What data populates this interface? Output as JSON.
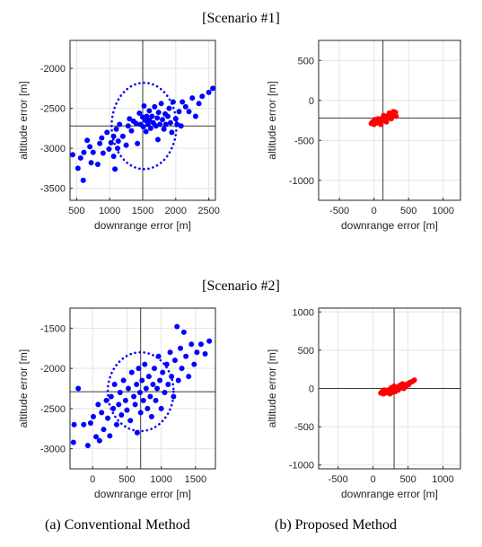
{
  "scenario_titles": [
    "[Scenario  #1]",
    "[Scenario  #2]"
  ],
  "captions": [
    "(a)  Conventional  Method",
    "(b)  Proposed  Method"
  ],
  "chart_data": [
    {
      "type": "scatter",
      "scenario": "[Scenario  #1]",
      "panel": "(a)  Conventional  Method",
      "xlabel": "downrange error [m]",
      "ylabel": "altitude error [m]",
      "xlim": [
        400,
        2600
      ],
      "ylim": [
        -3650,
        -1650
      ],
      "xticks": [
        500,
        1000,
        1500,
        2000,
        2500
      ],
      "yticks": [
        -3500,
        -3000,
        -2500,
        -2000
      ],
      "grid": true,
      "marker_color": "#0000ff",
      "crosshair": {
        "x": 1500,
        "y": -2720
      },
      "circle": {
        "cx": 1520,
        "cy": -2720,
        "rx": 490,
        "ry": 540
      },
      "points": [
        [
          440,
          -3080
        ],
        [
          520,
          -3250
        ],
        [
          560,
          -3120
        ],
        [
          600,
          -3400
        ],
        [
          610,
          -3050
        ],
        [
          660,
          -2900
        ],
        [
          700,
          -2980
        ],
        [
          720,
          -3180
        ],
        [
          750,
          -3050
        ],
        [
          820,
          -3200
        ],
        [
          850,
          -2940
        ],
        [
          880,
          -2870
        ],
        [
          900,
          -3060
        ],
        [
          960,
          -2800
        ],
        [
          990,
          -3010
        ],
        [
          1020,
          -2930
        ],
        [
          1060,
          -3100
        ],
        [
          1060,
          -2850
        ],
        [
          1080,
          -3260
        ],
        [
          1100,
          -2760
        ],
        [
          1120,
          -3000
        ],
        [
          1130,
          -2910
        ],
        [
          1150,
          -2700
        ],
        [
          1200,
          -2850
        ],
        [
          1250,
          -2960
        ],
        [
          1280,
          -2720
        ],
        [
          1300,
          -2630
        ],
        [
          1330,
          -2780
        ],
        [
          1360,
          -2660
        ],
        [
          1400,
          -2690
        ],
        [
          1420,
          -2940
        ],
        [
          1450,
          -2560
        ],
        [
          1470,
          -2700
        ],
        [
          1500,
          -2610
        ],
        [
          1510,
          -2730
        ],
        [
          1520,
          -2470
        ],
        [
          1540,
          -2650
        ],
        [
          1550,
          -2790
        ],
        [
          1560,
          -2600
        ],
        [
          1580,
          -2700
        ],
        [
          1600,
          -2530
        ],
        [
          1600,
          -2650
        ],
        [
          1620,
          -2750
        ],
        [
          1640,
          -2600
        ],
        [
          1660,
          -2680
        ],
        [
          1680,
          -2480
        ],
        [
          1700,
          -2720
        ],
        [
          1720,
          -2620
        ],
        [
          1730,
          -2890
        ],
        [
          1740,
          -2550
        ],
        [
          1760,
          -2700
        ],
        [
          1780,
          -2440
        ],
        [
          1800,
          -2640
        ],
        [
          1820,
          -2760
        ],
        [
          1840,
          -2570
        ],
        [
          1850,
          -2700
        ],
        [
          1880,
          -2600
        ],
        [
          1900,
          -2500
        ],
        [
          1920,
          -2680
        ],
        [
          1940,
          -2800
        ],
        [
          1960,
          -2420
        ],
        [
          2000,
          -2630
        ],
        [
          2020,
          -2700
        ],
        [
          2050,
          -2540
        ],
        [
          2080,
          -2720
        ],
        [
          2100,
          -2420
        ],
        [
          2150,
          -2480
        ],
        [
          2200,
          -2540
        ],
        [
          2250,
          -2370
        ],
        [
          2300,
          -2600
        ],
        [
          2350,
          -2440
        ],
        [
          2400,
          -2350
        ],
        [
          2500,
          -2300
        ],
        [
          2560,
          -2250
        ]
      ]
    },
    {
      "type": "scatter",
      "scenario": "[Scenario  #1]",
      "panel": "(b)  Proposed  Method",
      "xlabel": "downrange error [m]",
      "ylabel": "altitude error [m]",
      "xlim": [
        -800,
        1250
      ],
      "ylim": [
        -1250,
        750
      ],
      "xticks": [
        -500,
        0,
        500,
        1000
      ],
      "yticks": [
        -1000,
        -500,
        0,
        500
      ],
      "grid": true,
      "marker_color": "#ff0000",
      "crosshair": {
        "x": 130,
        "y": -220
      },
      "points": [
        [
          -40,
          -290
        ],
        [
          -20,
          -270
        ],
        [
          0,
          -300
        ],
        [
          20,
          -260
        ],
        [
          30,
          -285
        ],
        [
          50,
          -250
        ],
        [
          60,
          -280
        ],
        [
          80,
          -240
        ],
        [
          90,
          -265
        ],
        [
          110,
          -230
        ],
        [
          120,
          -255
        ],
        [
          140,
          -215
        ],
        [
          150,
          -245
        ],
        [
          170,
          -205
        ],
        [
          180,
          -235
        ],
        [
          200,
          -195
        ],
        [
          210,
          -220
        ],
        [
          230,
          -180
        ],
        [
          240,
          -205
        ],
        [
          260,
          -170
        ],
        [
          270,
          -195
        ],
        [
          290,
          -160
        ],
        [
          300,
          -185
        ],
        [
          310,
          -150
        ],
        [
          320,
          -200
        ],
        [
          100,
          -300
        ],
        [
          140,
          -190
        ],
        [
          180,
          -270
        ],
        [
          220,
          -160
        ],
        [
          250,
          -230
        ],
        [
          280,
          -140
        ],
        [
          60,
          -230
        ],
        [
          10,
          -240
        ]
      ]
    },
    {
      "type": "scatter",
      "scenario": "[Scenario  #2]",
      "panel": "(a)  Conventional  Method",
      "xlabel": "downrange error [m]",
      "ylabel": "altitude error [m]",
      "xlim": [
        -330,
        1790
      ],
      "ylim": [
        -3250,
        -1250
      ],
      "xticks": [
        0,
        500,
        1000,
        1500
      ],
      "yticks": [
        -3000,
        -2500,
        -2000,
        -1500
      ],
      "grid": true,
      "marker_color": "#0000ff",
      "crosshair": {
        "x": 700,
        "y": -2290
      },
      "circle": {
        "cx": 700,
        "cy": -2290,
        "rx": 480,
        "ry": 490
      },
      "points": [
        [
          -270,
          -2700
        ],
        [
          -280,
          -2920
        ],
        [
          -210,
          -2250
        ],
        [
          -130,
          -2700
        ],
        [
          -70,
          -2960
        ],
        [
          -30,
          -2680
        ],
        [
          10,
          -2600
        ],
        [
          50,
          -2850
        ],
        [
          80,
          -2450
        ],
        [
          100,
          -2900
        ],
        [
          130,
          -2550
        ],
        [
          160,
          -2760
        ],
        [
          200,
          -2400
        ],
        [
          220,
          -2620
        ],
        [
          250,
          -2840
        ],
        [
          270,
          -2350
        ],
        [
          300,
          -2500
        ],
        [
          320,
          -2200
        ],
        [
          350,
          -2700
        ],
        [
          380,
          -2450
        ],
        [
          400,
          -2300
        ],
        [
          420,
          -2580
        ],
        [
          450,
          -2150
        ],
        [
          480,
          -2400
        ],
        [
          500,
          -2520
        ],
        [
          520,
          -2250
        ],
        [
          550,
          -2650
        ],
        [
          570,
          -2050
        ],
        [
          600,
          -2350
        ],
        [
          620,
          -2450
        ],
        [
          640,
          -2200
        ],
        [
          650,
          -2800
        ],
        [
          670,
          -2000
        ],
        [
          690,
          -2300
        ],
        [
          700,
          -2550
        ],
        [
          720,
          -2150
        ],
        [
          740,
          -2400
        ],
        [
          760,
          -1950
        ],
        [
          780,
          -2250
        ],
        [
          800,
          -2500
        ],
        [
          820,
          -2100
        ],
        [
          840,
          -2350
        ],
        [
          860,
          -2600
        ],
        [
          880,
          -2200
        ],
        [
          900,
          -2000
        ],
        [
          920,
          -2400
        ],
        [
          940,
          -2250
        ],
        [
          960,
          -1850
        ],
        [
          980,
          -2150
        ],
        [
          1000,
          -2500
        ],
        [
          1020,
          -2050
        ],
        [
          1050,
          -2300
        ],
        [
          1080,
          -1950
        ],
        [
          1100,
          -2200
        ],
        [
          1130,
          -1800
        ],
        [
          1150,
          -2100
        ],
        [
          1180,
          -2350
        ],
        [
          1200,
          -1900
        ],
        [
          1230,
          -1480
        ],
        [
          1250,
          -2150
        ],
        [
          1280,
          -1750
        ],
        [
          1300,
          -2000
        ],
        [
          1330,
          -1550
        ],
        [
          1360,
          -1850
        ],
        [
          1400,
          -2100
        ],
        [
          1440,
          -1700
        ],
        [
          1480,
          -1950
        ],
        [
          1520,
          -1800
        ],
        [
          1580,
          -1700
        ],
        [
          1640,
          -1820
        ],
        [
          1700,
          -1660
        ]
      ]
    },
    {
      "type": "scatter",
      "scenario": "[Scenario  #2]",
      "panel": "(b)  Proposed  Method",
      "xlabel": "downrange error [m]",
      "ylabel": "altitude error [m]",
      "xlim": [
        -780,
        1250
      ],
      "ylim": [
        -1050,
        1050
      ],
      "xticks": [
        -500,
        0,
        500,
        1000
      ],
      "yticks": [
        -1000,
        -500,
        0,
        500,
        1000
      ],
      "grid": true,
      "marker_color": "#ff0000",
      "crosshair": {
        "x": 300,
        "y": 0
      },
      "points": [
        [
          110,
          -60
        ],
        [
          130,
          -40
        ],
        [
          150,
          -70
        ],
        [
          170,
          -30
        ],
        [
          190,
          -55
        ],
        [
          210,
          -20
        ],
        [
          230,
          -45
        ],
        [
          250,
          -10
        ],
        [
          270,
          -35
        ],
        [
          290,
          0
        ],
        [
          310,
          -25
        ],
        [
          330,
          15
        ],
        [
          350,
          -10
        ],
        [
          370,
          25
        ],
        [
          390,
          5
        ],
        [
          410,
          35
        ],
        [
          430,
          15
        ],
        [
          450,
          45
        ],
        [
          470,
          30
        ],
        [
          490,
          60
        ],
        [
          510,
          50
        ],
        [
          530,
          80
        ],
        [
          560,
          90
        ],
        [
          590,
          110
        ],
        [
          200,
          -50
        ],
        [
          260,
          10
        ],
        [
          320,
          -40
        ],
        [
          380,
          40
        ],
        [
          440,
          0
        ],
        [
          160,
          -20
        ],
        [
          240,
          -70
        ],
        [
          300,
          30
        ],
        [
          360,
          -20
        ],
        [
          420,
          60
        ],
        [
          280,
          -50
        ]
      ]
    }
  ]
}
